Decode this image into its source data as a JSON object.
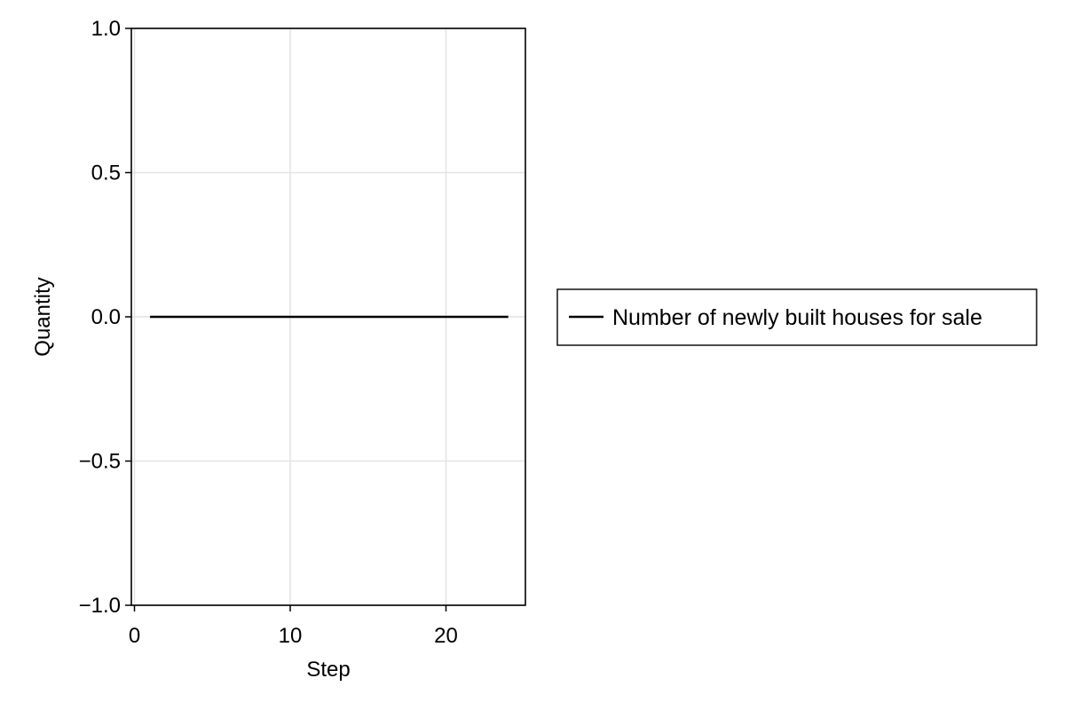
{
  "chart_data": {
    "type": "line",
    "title": "",
    "xlabel": "Step",
    "ylabel": "Quantity",
    "xlim": [
      -0.2,
      25.1
    ],
    "ylim": [
      -1.0,
      1.0
    ],
    "x_ticks": [
      0,
      10,
      20
    ],
    "x_tick_labels": [
      "0",
      "10",
      "20"
    ],
    "y_ticks": [
      -1.0,
      -0.5,
      0.0,
      0.5,
      1.0
    ],
    "y_tick_labels": [
      "−1.0",
      "−0.5",
      "0.0",
      "0.5",
      "1.0"
    ],
    "grid": true,
    "legend_position": "right",
    "series": [
      {
        "name": "Number of newly built houses for sale",
        "color": "#000000",
        "x": [
          1,
          2,
          3,
          4,
          5,
          6,
          7,
          8,
          9,
          10,
          11,
          12,
          13,
          14,
          15,
          16,
          17,
          18,
          19,
          20,
          21,
          22,
          23,
          24
        ],
        "y": [
          0,
          0,
          0,
          0,
          0,
          0,
          0,
          0,
          0,
          0,
          0,
          0,
          0,
          0,
          0,
          0,
          0,
          0,
          0,
          0,
          0,
          0,
          0,
          0
        ]
      }
    ]
  }
}
